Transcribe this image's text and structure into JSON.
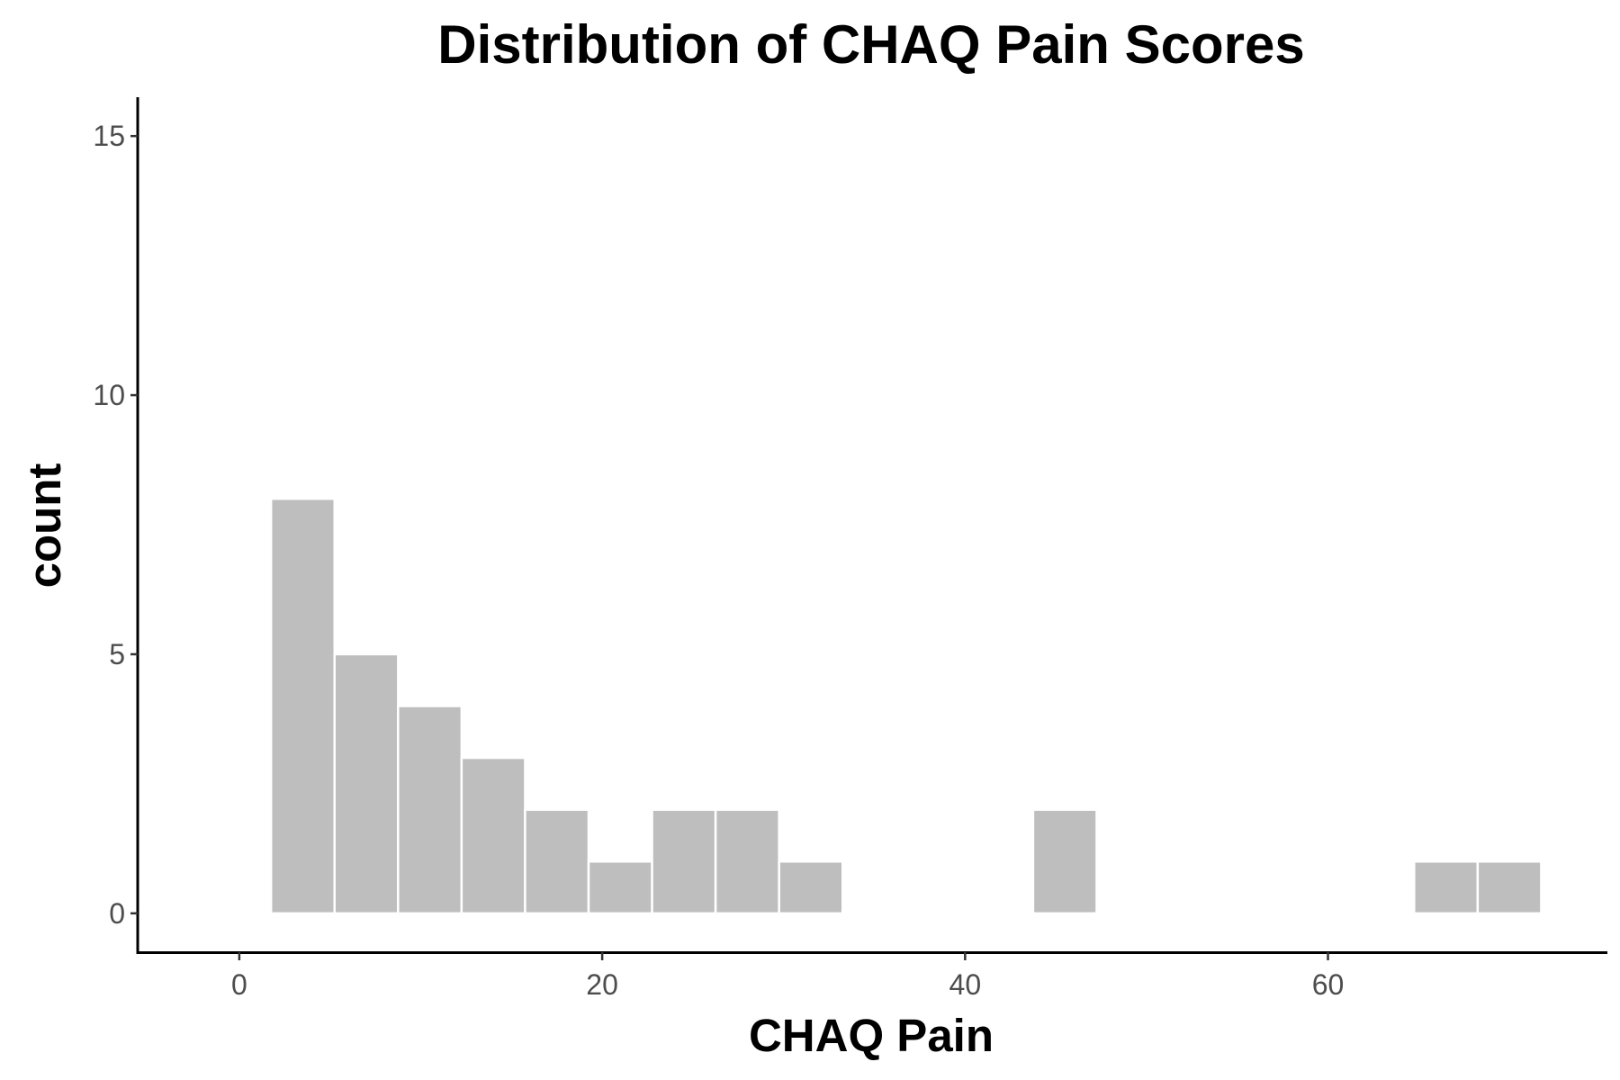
{
  "chart_data": {
    "type": "bar",
    "title": "Distribution of CHAQ Pain Scores",
    "xlabel": "CHAQ Pain",
    "ylabel": "count",
    "xlim": [
      -5.6,
      75.4
    ],
    "ylim": [
      -0.75,
      15.75
    ],
    "xticks": [
      0,
      20,
      40,
      60
    ],
    "yticks": [
      0,
      5,
      10,
      15
    ],
    "bin_width": 3.5,
    "bars": [
      {
        "x0": 1.75,
        "x1": 5.25,
        "count": 8
      },
      {
        "x0": 5.25,
        "x1": 8.75,
        "count": 5
      },
      {
        "x0": 8.75,
        "x1": 12.25,
        "count": 4
      },
      {
        "x0": 12.25,
        "x1": 15.75,
        "count": 3
      },
      {
        "x0": 15.75,
        "x1": 19.25,
        "count": 2
      },
      {
        "x0": 19.25,
        "x1": 22.75,
        "count": 1
      },
      {
        "x0": 22.75,
        "x1": 26.25,
        "count": 2
      },
      {
        "x0": 26.25,
        "x1": 29.75,
        "count": 2
      },
      {
        "x0": 29.75,
        "x1": 33.25,
        "count": 1
      },
      {
        "x0": 43.75,
        "x1": 47.25,
        "count": 2
      },
      {
        "x0": 64.75,
        "x1": 68.25,
        "count": 1
      },
      {
        "x0": 68.25,
        "x1": 71.75,
        "count": 1
      }
    ],
    "bar_color": "#bebebe",
    "grid": false,
    "legend": "none"
  }
}
